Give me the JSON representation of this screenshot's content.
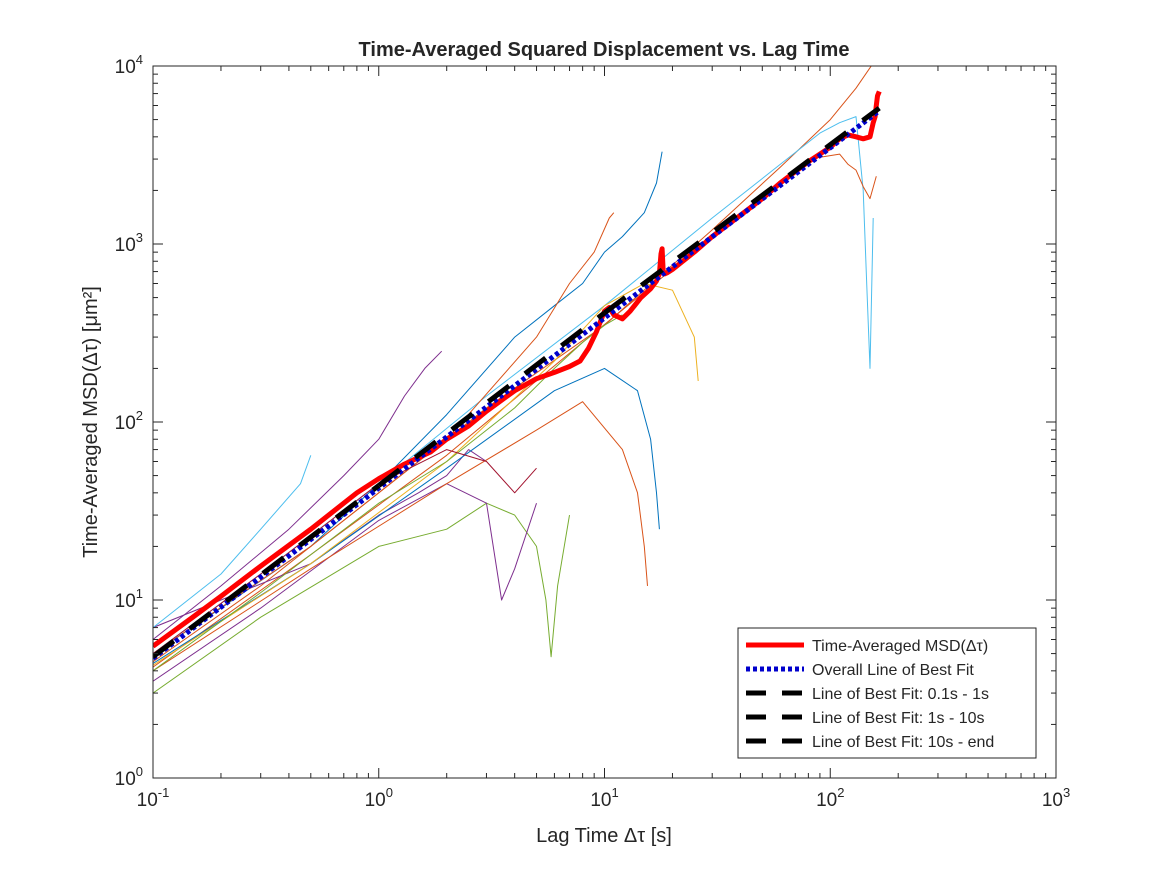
{
  "chart_data": {
    "type": "line",
    "title": "Time-Averaged Squared Displacement vs. Lag Time",
    "xlabel": "Lag Time Δτ [s]",
    "ylabel": "Time-Averaged MSD(Δτ) [μm²]",
    "xscale": "log",
    "yscale": "log",
    "xlim": [
      0.1,
      1000
    ],
    "ylim": [
      1,
      10000
    ],
    "grid": false,
    "x_ticks": [
      {
        "value": 0.1,
        "base": "10",
        "exp": "-1"
      },
      {
        "value": 1,
        "base": "10",
        "exp": "0"
      },
      {
        "value": 10,
        "base": "10",
        "exp": "1"
      },
      {
        "value": 100,
        "base": "10",
        "exp": "2"
      },
      {
        "value": 1000,
        "base": "10",
        "exp": "3"
      }
    ],
    "y_ticks": [
      {
        "value": 1,
        "base": "10",
        "exp": "0"
      },
      {
        "value": 10,
        "base": "10",
        "exp": "1"
      },
      {
        "value": 100,
        "base": "10",
        "exp": "2"
      },
      {
        "value": 1000,
        "base": "10",
        "exp": "3"
      },
      {
        "value": 10000,
        "base": "10",
        "exp": "4"
      }
    ],
    "legend_position": "bottom-right",
    "series": [
      {
        "name": "Time-Averaged MSD(Δτ)",
        "color": "#ff0000",
        "style": "solid",
        "width": 5,
        "x": [
          0.1,
          0.15,
          0.2,
          0.3,
          0.5,
          0.8,
          1.0,
          1.3,
          1.7,
          2.0,
          2.5,
          3.0,
          4.0,
          5.0,
          6.0,
          7.0,
          7.8,
          8.5,
          9.2,
          10.0,
          10.5,
          11.0,
          12.0,
          13.0,
          14.5,
          16.0,
          17.0,
          17.5,
          17.8,
          18.0,
          18.2,
          18.5,
          19.0,
          20.0,
          25.0,
          30.0,
          40.0,
          50.0,
          60.0,
          80.0,
          100.0,
          110.0,
          120.0,
          130.0,
          140.0,
          150.0,
          155.0,
          158.0,
          160.0,
          162.0,
          165.0
        ],
        "y": [
          5.5,
          8.0,
          10.5,
          15.5,
          25.0,
          40.0,
          48.0,
          58.0,
          68.0,
          80.0,
          95.0,
          115.0,
          150.0,
          175.0,
          190.0,
          205.0,
          220.0,
          260.0,
          320.0,
          420.0,
          440.0,
          400.0,
          380.0,
          420.0,
          500.0,
          560.0,
          620.0,
          680.0,
          880.0,
          940.0,
          700.0,
          680.0,
          690.0,
          720.0,
          900.0,
          1100.0,
          1450.0,
          1800.0,
          2200.0,
          2900.0,
          3500.0,
          3900.0,
          4100.0,
          4000.0,
          3900.0,
          4000.0,
          4800.0,
          5200.0,
          6000.0,
          6800.0,
          7200.0
        ]
      },
      {
        "name": "Overall Line of Best Fit",
        "color": "#0000cc",
        "style": "dotted",
        "width": 5,
        "x": [
          0.1,
          165.0
        ],
        "y": [
          4.7,
          5600.0
        ]
      },
      {
        "name": "Line of Best Fit: 0.1s - 1s",
        "color": "#000000",
        "style": "dashed",
        "width": 5,
        "x": [
          0.1,
          1.0
        ],
        "y": [
          4.8,
          44.0
        ]
      },
      {
        "name": "Line of Best Fit: 1s - 10s",
        "color": "#000000",
        "style": "dashed",
        "width": 5,
        "x": [
          1.0,
          10.0
        ],
        "y": [
          44.0,
          410.0
        ]
      },
      {
        "name": "Line of Best Fit: 10s - end",
        "color": "#000000",
        "style": "dashed",
        "width": 5,
        "x": [
          10.0,
          165.0
        ],
        "y": [
          410.0,
          5800.0
        ]
      }
    ],
    "individual_tracks": [
      {
        "color": "#0072bd",
        "x": [
          0.1,
          0.2,
          0.5,
          1.0,
          2.0,
          4.0,
          6.0,
          8.0,
          10.0,
          12.0,
          15.0,
          17.0,
          18.0
        ],
        "y": [
          5.0,
          9.0,
          20.0,
          45.0,
          110.0,
          300.0,
          450.0,
          600.0,
          900.0,
          1100.0,
          1500.0,
          2200.0,
          3300.0
        ]
      },
      {
        "color": "#d95319",
        "x": [
          0.1,
          0.3,
          1.0,
          3.0,
          10.0,
          30.0,
          60.0,
          100.0,
          130.0,
          160.0
        ],
        "y": [
          4.5,
          12.0,
          40.0,
          120.0,
          350.0,
          1200.0,
          2700.0,
          5000.0,
          7500.0,
          11000.0
        ]
      },
      {
        "color": "#4dbeee",
        "x": [
          0.1,
          0.3,
          1.0,
          3.0,
          10.0,
          30.0,
          60.0,
          90.0,
          110.0,
          130.0,
          140.0,
          145.0,
          150.0,
          155.0
        ],
        "y": [
          5.0,
          14.0,
          45.0,
          140.0,
          450.0,
          1400.0,
          2800.0,
          4200.0,
          4800.0,
          5200.0,
          2000.0,
          600.0,
          200.0,
          1400.0
        ]
      },
      {
        "color": "#d95319",
        "x": [
          0.1,
          0.5,
          2.0,
          8.0,
          30.0,
          80.0,
          110.0,
          120.0,
          130.0,
          140.0,
          150.0,
          160.0
        ],
        "y": [
          4.2,
          18.0,
          65.0,
          280.0,
          1100.0,
          3000.0,
          3200.0,
          2800.0,
          2600.0,
          2100.0,
          1800.0,
          2400.0
        ]
      },
      {
        "color": "#7e2f8e",
        "x": [
          0.1,
          0.2,
          0.4,
          0.7,
          1.0,
          1.3,
          1.6,
          1.9
        ],
        "y": [
          6.0,
          12.0,
          25.0,
          50.0,
          80.0,
          140.0,
          200.0,
          250.0
        ]
      },
      {
        "color": "#7e2f8e",
        "x": [
          0.1,
          0.2,
          0.5,
          1.0,
          1.5,
          2.0,
          2.5,
          3.0
        ],
        "y": [
          7.0,
          10.0,
          16.0,
          30.0,
          40.0,
          50.0,
          70.0,
          60.0
        ]
      },
      {
        "color": "#77ac30",
        "x": [
          0.1,
          0.3,
          1.0,
          2.0,
          3.0,
          4.0,
          5.0,
          5.5,
          5.8,
          6.2,
          7.0
        ],
        "y": [
          3.0,
          8.0,
          20.0,
          25.0,
          35.0,
          30.0,
          20.0,
          10.0,
          4.8,
          12.0,
          30.0
        ]
      },
      {
        "color": "#7e2f8e",
        "x": [
          0.1,
          0.3,
          1.0,
          2.0,
          3.0,
          3.5,
          4.0,
          5.0
        ],
        "y": [
          3.5,
          9.0,
          28.0,
          45.0,
          35.0,
          10.0,
          15.0,
          35.0
        ]
      },
      {
        "color": "#d95319",
        "x": [
          0.1,
          0.5,
          2.0,
          5.0,
          8.0,
          12.0,
          14.0,
          15.0,
          15.5
        ],
        "y": [
          4.0,
          15.0,
          45.0,
          90.0,
          130.0,
          70.0,
          40.0,
          20.0,
          12.0
        ]
      },
      {
        "color": "#0072bd",
        "x": [
          0.1,
          0.5,
          2.0,
          6.0,
          10.0,
          14.0,
          16.0,
          17.0,
          17.5
        ],
        "y": [
          4.4,
          16.0,
          55.0,
          150.0,
          200.0,
          150.0,
          80.0,
          40.0,
          25.0
        ]
      },
      {
        "color": "#edb120",
        "x": [
          0.1,
          0.5,
          2.0,
          6.0,
          10.0,
          15.0,
          20.0,
          25.0,
          26.0
        ],
        "y": [
          4.3,
          16.0,
          60.0,
          220.0,
          450.0,
          600.0,
          550.0,
          300.0,
          170.0
        ]
      },
      {
        "color": "#4dbeee",
        "x": [
          0.1,
          0.2,
          0.3,
          0.45,
          0.5
        ],
        "y": [
          7.0,
          14.0,
          25.0,
          45.0,
          65.0
        ]
      },
      {
        "color": "#d95319",
        "x": [
          0.1,
          0.5,
          2.0,
          5.0,
          7.0,
          9.0,
          10.5,
          11.0
        ],
        "y": [
          5.0,
          20.0,
          80.0,
          300.0,
          600.0,
          900.0,
          1400.0,
          1500.0
        ]
      },
      {
        "color": "#77ac30",
        "x": [
          0.1,
          0.3,
          1.0,
          2.0,
          4.0,
          6.0,
          8.0,
          10.0,
          12.0
        ],
        "y": [
          4.0,
          11.0,
          35.0,
          60.0,
          120.0,
          200.0,
          280.0,
          350.0,
          400.0
        ]
      },
      {
        "color": "#a2142f",
        "x": [
          0.1,
          0.3,
          1.0,
          2.0,
          3.0,
          4.0,
          5.0
        ],
        "y": [
          5.0,
          14.0,
          45.0,
          70.0,
          60.0,
          40.0,
          55.0
        ]
      }
    ]
  }
}
